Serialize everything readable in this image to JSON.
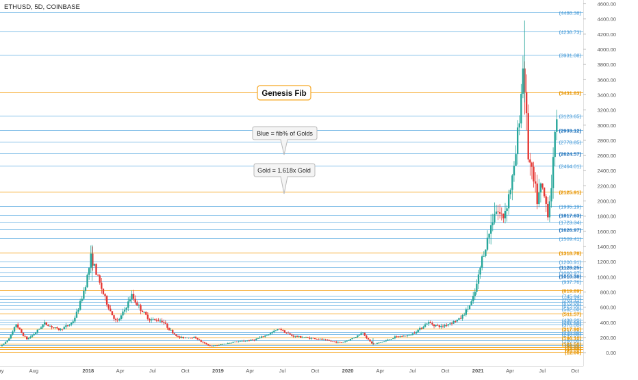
{
  "header": {
    "symbol_line": "ETHUSD, 5D, COINBASE"
  },
  "colors": {
    "blue_level": "#5aa9e0",
    "gold_level": "#f5a623",
    "candle_up": "#26a69a",
    "candle_down": "#e53935",
    "price_label_gold": "#e59400",
    "price_label_blue": "#3a93d4",
    "price_label_blue_bold": "#1e6fb8",
    "axis_text": "#555555"
  },
  "callouts": {
    "genesis": "Genesis Fib",
    "blue_note": "Blue = fib% of Golds",
    "gold_note": "Gold = 1.618x Gold"
  },
  "chart_data": {
    "type": "candlestick",
    "title": "ETHUSD, 5D, COINBASE",
    "ylim": [
      -180,
      4650
    ],
    "y_ticks": [
      0,
      200,
      400,
      600,
      800,
      1000,
      1200,
      1400,
      1600,
      1800,
      2000,
      2200,
      2400,
      2600,
      2800,
      3000,
      3200,
      3400,
      3600,
      3800,
      4000,
      4200,
      4400,
      4600
    ],
    "y_tick_labels": [
      "0.00",
      "200.00",
      "400.00",
      "600.00",
      "800.00",
      "1000.00",
      "1200.00",
      "1400.00",
      "1600.00",
      "1800.00",
      "2000.00",
      "2200.00",
      "2400.00",
      "2600.00",
      "2800.00",
      "3000.00",
      "3200.00",
      "3400.00",
      "3600.00",
      "3800.00",
      "4000.00",
      "4200.00",
      "4400.00",
      "4600.00"
    ],
    "x_ticks": [
      {
        "label": "ay",
        "date": "2017-05-01"
      },
      {
        "label": "Aug",
        "date": "2017-08-01"
      },
      {
        "label": "2018",
        "date": "2018-01-01"
      },
      {
        "label": "Apr",
        "date": "2018-04-01"
      },
      {
        "label": "Jul",
        "date": "2018-07-01"
      },
      {
        "label": "Oct",
        "date": "2018-10-01"
      },
      {
        "label": "2019",
        "date": "2019-01-01"
      },
      {
        "label": "Apr",
        "date": "2019-04-01"
      },
      {
        "label": "Jul",
        "date": "2019-07-01"
      },
      {
        "label": "Oct",
        "date": "2019-10-01"
      },
      {
        "label": "2020",
        "date": "2020-01-01"
      },
      {
        "label": "Apr",
        "date": "2020-04-01"
      },
      {
        "label": "Jul",
        "date": "2020-07-01"
      },
      {
        "label": "Oct",
        "date": "2020-10-01"
      },
      {
        "label": "2021",
        "date": "2021-01-01"
      },
      {
        "label": "Apr",
        "date": "2021-04-01"
      },
      {
        "label": "Jul",
        "date": "2021-07-01"
      },
      {
        "label": "Oct",
        "date": "2021-10-01"
      }
    ],
    "gold_levels": [
      {
        "value": 3431.83,
        "label": "(3431.83)"
      },
      {
        "value": 2125.91,
        "label": "(2125.91)"
      },
      {
        "value": 1318.78,
        "label": "(1318.78)"
      },
      {
        "value": 819.89,
        "label": "(819.89)"
      },
      {
        "value": 511.57,
        "label": "(511.57)"
      },
      {
        "value": 317.9,
        "label": "(317.90)"
      },
      {
        "value": 196.1,
        "label": "(196.10)"
      },
      {
        "value": 121.5,
        "label": "(121.50)"
      },
      {
        "value": 75.0,
        "label": "(75.00)"
      },
      {
        "value": 46.0,
        "label": "(46.00)"
      },
      {
        "value": 12.0,
        "label": "(12.00)"
      }
    ],
    "blue_levels": [
      {
        "value": 4488.38,
        "label": "(4488.38)",
        "bold": false
      },
      {
        "value": 4238.73,
        "label": "(4238.73)",
        "bold": false
      },
      {
        "value": 3931.08,
        "label": "(3931.08)",
        "bold": false
      },
      {
        "value": 3123.65,
        "label": "(3123.65)",
        "bold": false
      },
      {
        "value": 2933.12,
        "label": "(2933.12)",
        "bold": true
      },
      {
        "value": 2778.85,
        "label": "(2778.85)",
        "bold": false
      },
      {
        "value": 2624.57,
        "label": "(2624.57)",
        "bold": true
      },
      {
        "value": 2464.01,
        "label": "(2464.01)",
        "bold": false
      },
      {
        "value": 1935.19,
        "label": "(1935.19)",
        "bold": false
      },
      {
        "value": 1817.63,
        "label": "(1817.63)",
        "bold": true
      },
      {
        "value": 1723.34,
        "label": "(1723.34)",
        "bold": false
      },
      {
        "value": 1626.97,
        "label": "(1626.97)",
        "bold": true
      },
      {
        "value": 1509.41,
        "label": "(1509.41)",
        "bold": false
      },
      {
        "value": 1200.91,
        "label": "(1200.91)",
        "bold": false
      },
      {
        "value": 1128.25,
        "label": "(1128.25)",
        "bold": true
      },
      {
        "value": 1060.97,
        "label": "(1060.97)",
        "bold": false
      },
      {
        "value": 1010.38,
        "label": "(1010.38)",
        "bold": true
      },
      {
        "value": 937.76,
        "label": "(937.76)",
        "bold": false
      },
      {
        "value": 745.94,
        "label": "(745.94)",
        "bold": false
      },
      {
        "value": 701.11,
        "label": "(701.11)",
        "bold": false
      },
      {
        "value": 670.0,
        "label": "(670.00)",
        "bold": false
      },
      {
        "value": 625.0,
        "label": "(625.00)",
        "bold": false
      },
      {
        "value": 582.0,
        "label": "(582.00)",
        "bold": false
      },
      {
        "value": 438.2,
        "label": "(438.20)",
        "bold": false
      },
      {
        "value": 401.0,
        "label": "(401.00)",
        "bold": false
      },
      {
        "value": 370.0,
        "label": "(370.00)",
        "bold": false
      },
      {
        "value": 270.0,
        "label": "(270.00)",
        "bold": false
      },
      {
        "value": 240.0,
        "label": "(240.00)",
        "bold": false
      },
      {
        "value": 160.0,
        "label": "(160.00)",
        "bold": false
      },
      {
        "value": 98.0,
        "label": "(98.00)",
        "bold": false
      }
    ],
    "anchors": [
      [
        "2017-05-01",
        85
      ],
      [
        "2017-06-15",
        380
      ],
      [
        "2017-07-15",
        180
      ],
      [
        "2017-09-01",
        390
      ],
      [
        "2017-10-15",
        300
      ],
      [
        "2017-11-20",
        400
      ],
      [
        "2017-12-20",
        780
      ],
      [
        "2018-01-12",
        1280
      ],
      [
        "2018-02-10",
        850
      ],
      [
        "2018-03-25",
        400
      ],
      [
        "2018-05-05",
        760
      ],
      [
        "2018-06-25",
        440
      ],
      [
        "2018-08-01",
        420
      ],
      [
        "2018-09-15",
        200
      ],
      [
        "2018-11-01",
        200
      ],
      [
        "2018-12-15",
        85
      ],
      [
        "2019-02-15",
        140
      ],
      [
        "2019-04-15",
        170
      ],
      [
        "2019-06-25",
        320
      ],
      [
        "2019-08-01",
        220
      ],
      [
        "2019-10-15",
        180
      ],
      [
        "2019-12-15",
        130
      ],
      [
        "2020-02-15",
        270
      ],
      [
        "2020-03-15",
        110
      ],
      [
        "2020-05-15",
        205
      ],
      [
        "2020-06-25",
        230
      ],
      [
        "2020-08-15",
        400
      ],
      [
        "2020-09-20",
        340
      ],
      [
        "2020-11-15",
        450
      ],
      [
        "2020-12-20",
        700
      ],
      [
        "2021-01-15",
        1250
      ],
      [
        "2021-02-20",
        1900
      ],
      [
        "2021-03-15",
        1780
      ],
      [
        "2021-04-15",
        2400
      ],
      [
        "2021-05-12",
        3900
      ],
      [
        "2021-05-25",
        2600
      ],
      [
        "2021-06-20",
        2000
      ],
      [
        "2021-07-01",
        2200
      ],
      [
        "2021-07-20",
        1850
      ],
      [
        "2021-08-05",
        2600
      ],
      [
        "2021-08-12",
        3150
      ]
    ]
  }
}
